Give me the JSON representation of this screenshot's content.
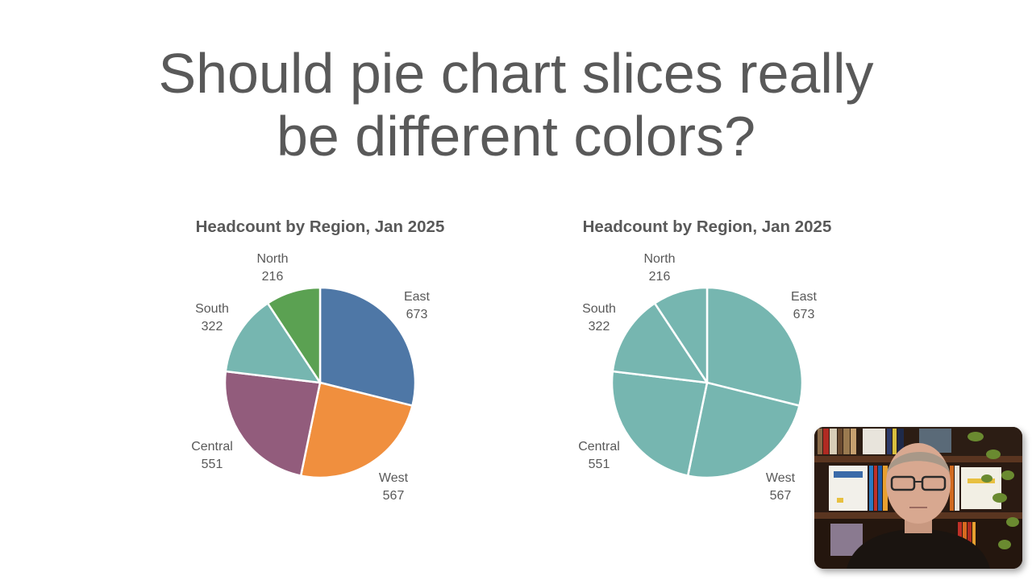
{
  "slide": {
    "title_line1": "Should pie chart slices really",
    "title_line2": "be different colors?"
  },
  "charts": [
    {
      "title": "Headcount by Region, Jan 2025",
      "labels": {
        "east": {
          "name": "East",
          "value": "673"
        },
        "west": {
          "name": "West",
          "value": "567"
        },
        "central": {
          "name": "Central",
          "value": "551"
        },
        "south": {
          "name": "South",
          "value": "322"
        },
        "north": {
          "name": "North",
          "value": "216"
        }
      }
    },
    {
      "title": "Headcount by Region, Jan 2025",
      "labels": {
        "east": {
          "name": "East",
          "value": "673"
        },
        "west": {
          "name": "West",
          "value": "567"
        },
        "central": {
          "name": "Central",
          "value": "551"
        },
        "south": {
          "name": "South",
          "value": "322"
        },
        "north": {
          "name": "North",
          "value": "216"
        }
      }
    }
  ],
  "colors": {
    "east": "#4e77a6",
    "west": "#f08f3e",
    "central": "#925c7c",
    "south": "#76b6b0",
    "north": "#5ba152",
    "mono": "#76b6b0",
    "title_text": "#595959"
  },
  "webcam": {
    "description": "presenter webcam overlay"
  },
  "chart_data": [
    {
      "type": "pie",
      "title": "Headcount by Region, Jan 2025",
      "categories": [
        "East",
        "West",
        "Central",
        "South",
        "North"
      ],
      "values": [
        673,
        567,
        551,
        322,
        216
      ],
      "colors": [
        "#4e77a6",
        "#f08f3e",
        "#925c7c",
        "#76b6b0",
        "#5ba152"
      ],
      "start_angle": "12 o'clock, clockwise",
      "data_labels": "category name and value, outside end",
      "legend": "none"
    },
    {
      "type": "pie",
      "title": "Headcount by Region, Jan 2025",
      "categories": [
        "East",
        "West",
        "Central",
        "South",
        "North"
      ],
      "values": [
        673,
        567,
        551,
        322,
        216
      ],
      "colors": [
        "#76b6b0",
        "#76b6b0",
        "#76b6b0",
        "#76b6b0",
        "#76b6b0"
      ],
      "start_angle": "12 o'clock, clockwise",
      "data_labels": "category name and value, outside end",
      "legend": "none"
    }
  ]
}
